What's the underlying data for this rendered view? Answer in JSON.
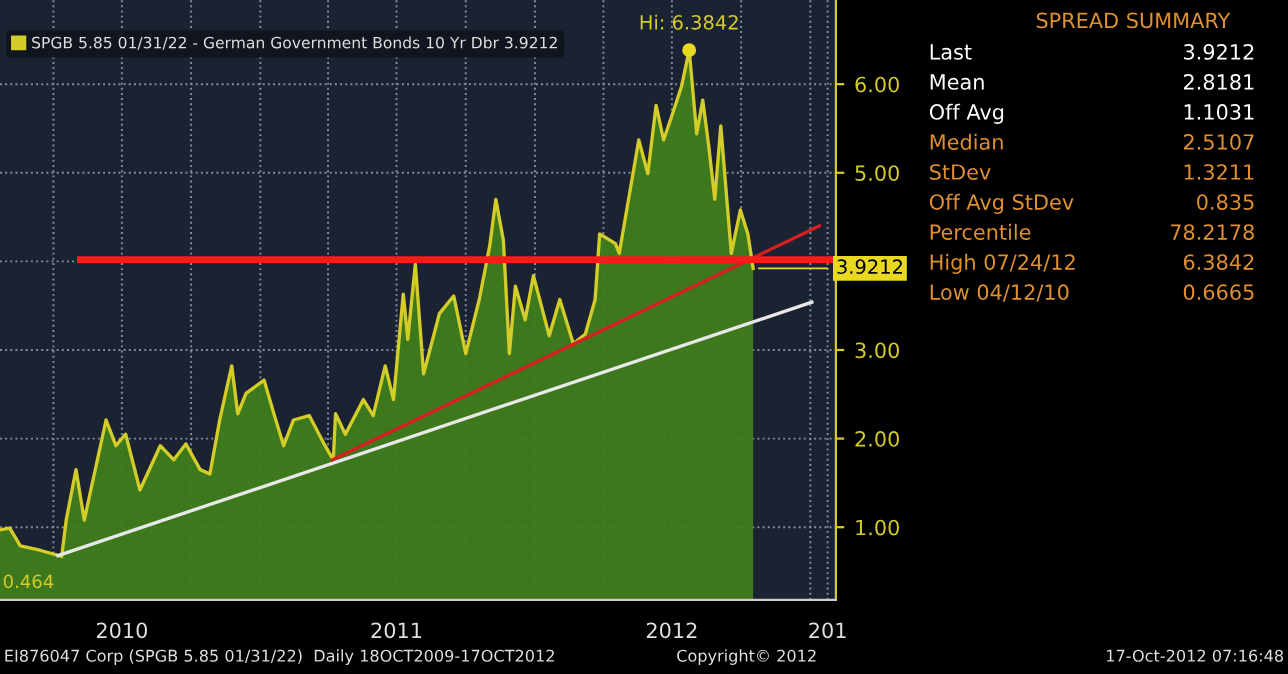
{
  "chart_data": [
    {
      "type": "area",
      "legend": "top left",
      "grid": true,
      "line_style": "solid",
      "marker": "none",
      "xlim": [
        "2010-01-20",
        "2013-02-04"
      ],
      "ylim": [
        0.18,
        6.95
      ],
      "xticks": [
        {
          "value": "2010-04-01",
          "label": null
        },
        {
          "value": "2010-07-01",
          "label": "2010"
        },
        {
          "value": "2010-10-01",
          "label": null
        },
        {
          "value": "2011-01-01",
          "label": null
        },
        {
          "value": "2011-04-01",
          "label": null
        },
        {
          "value": "2011-07-01",
          "label": "2011"
        },
        {
          "value": "2011-10-01",
          "label": null
        },
        {
          "value": "2012-01-01",
          "label": null
        },
        {
          "value": "2012-04-01",
          "label": null
        },
        {
          "value": "2012-07-01",
          "label": "2012"
        },
        {
          "value": "2012-10-01",
          "label": null
        },
        {
          "value": "2013-01-01",
          "label": null
        },
        {
          "value": "2013-01-24",
          "label": "201"
        }
      ],
      "yticks": [
        {
          "value": 1,
          "label": "1.00"
        },
        {
          "value": 2,
          "label": "2.00"
        },
        {
          "value": 3,
          "label": "3.00"
        },
        {
          "value": 4,
          "label": null
        },
        {
          "value": 5,
          "label": "5.00"
        },
        {
          "value": 6,
          "label": "6.00"
        }
      ],
      "series": [
        {
          "name": "SPGB 5.85 01/31/22 - German Government Bonds 10 Yr Dbr 3.9212",
          "color": "#d4cc28",
          "x": [
            "2010-01-20",
            "2010-02-02",
            "2010-02-16",
            "2010-03-14",
            "2010-04-12",
            "2010-04-18",
            "2010-05-01",
            "2010-05-12",
            "2010-06-10",
            "2010-06-23",
            "2010-07-06",
            "2010-07-25",
            "2010-08-21",
            "2010-09-08",
            "2010-09-24",
            "2010-10-13",
            "2010-10-26",
            "2010-11-08",
            "2010-11-24",
            "2010-12-02",
            "2010-12-13",
            "2011-01-06",
            "2011-01-19",
            "2011-02-01",
            "2011-02-14",
            "2011-03-07",
            "2011-03-28",
            "2011-04-08",
            "2011-04-11",
            "2011-04-24",
            "2011-05-18",
            "2011-05-31",
            "2011-06-16",
            "2011-06-27",
            "2011-07-10",
            "2011-07-16",
            "2011-07-26",
            "2011-08-06",
            "2011-08-27",
            "2011-09-15",
            "2011-10-01",
            "2011-10-19",
            "2011-11-02",
            "2011-11-10",
            "2011-11-20",
            "2011-11-28",
            "2011-12-06",
            "2011-12-19",
            "2011-12-30",
            "2012-01-20",
            "2012-02-03",
            "2012-02-21",
            "2012-03-08",
            "2012-03-21",
            "2012-03-27",
            "2012-04-17",
            "2012-04-22",
            "2012-05-18",
            "2012-05-30",
            "2012-06-10",
            "2012-06-20",
            "2012-07-02",
            "2012-07-14",
            "2012-07-24",
            "2012-08-03",
            "2012-08-11",
            "2012-08-19",
            "2012-08-27",
            "2012-09-04",
            "2012-09-12",
            "2012-09-18",
            "2012-09-30",
            "2012-10-10",
            "2012-10-17"
          ],
          "values": [
            0.97,
            0.99,
            0.79,
            0.74,
            0.67,
            1.08,
            1.65,
            1.08,
            2.21,
            1.92,
            2.05,
            1.42,
            1.92,
            1.76,
            1.94,
            1.65,
            1.6,
            2.21,
            2.82,
            2.28,
            2.51,
            2.66,
            2.28,
            1.92,
            2.21,
            2.26,
            1.92,
            1.76,
            2.28,
            2.05,
            2.44,
            2.26,
            2.82,
            2.44,
            3.63,
            3.12,
            3.97,
            2.73,
            3.41,
            3.61,
            2.96,
            3.57,
            4.18,
            4.7,
            4.24,
            2.96,
            3.72,
            3.34,
            3.84,
            3.16,
            3.57,
            3.07,
            3.18,
            3.57,
            4.31,
            4.2,
            4.09,
            5.37,
            4.99,
            5.76,
            5.37,
            5.67,
            5.98,
            6.3842,
            5.44,
            5.82,
            5.3,
            4.7,
            5.53,
            4.7,
            4.09,
            4.58,
            4.31,
            3.9212
          ]
        },
        {
          "type": "line",
          "color": "#e8e8e8",
          "x": [
            "2010-04-07",
            "2013-01-03"
          ],
          "values": [
            0.68,
            3.54
          ]
        },
        {
          "type": "line",
          "color": "#d42020",
          "x": [
            "2011-04-07",
            "2013-01-13"
          ],
          "values": [
            1.76,
            4.4
          ]
        },
        {
          "type": "line",
          "color": "#ff1a1a",
          "x": [
            "2010-05-07",
            "2013-02-04"
          ],
          "values": [
            4.02,
            4.02
          ]
        }
      ],
      "annotations": [
        {
          "text": "Hi: 6.3842",
          "x": "2012-07-24",
          "y": 6.3842
        },
        {
          "text": "3.9212",
          "x": "2012-10-17",
          "y": 3.9212
        },
        "0.464",
        "EI876047 Corp (SPGB 5.85 01/31/22)  Daily 18OCT2009-17OCT2012",
        "Copyright© 2012",
        "17-Oct-2012 07:16:48"
      ]
    },
    {
      "type": "other",
      "title": "SPREAD SUMMARY",
      "annotations": [
        "Last",
        "3.9212",
        "Mean",
        "2.8181",
        "Off Avg",
        "1.1031",
        "Median",
        "2.5107",
        "StDev",
        "1.3211",
        "Off Avg StDev",
        "0.835",
        "Percentile",
        "78.2178",
        "High 07/24/12",
        "6.3842",
        "Low 04/12/10",
        "0.6665"
      ]
    }
  ]
}
